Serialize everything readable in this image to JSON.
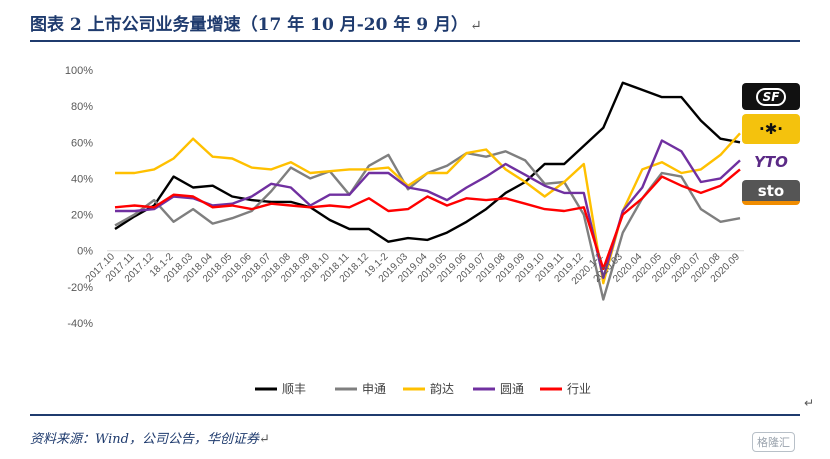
{
  "header": {
    "title": "图表 2  上市公司业务量增速（17 年 10 月-20 年 9 月）",
    "return_glyph": "↵"
  },
  "footer": {
    "source": "资料来源：Wind，公司公告，华创证券",
    "return_glyph": "↵",
    "side_glyph": "↵"
  },
  "logos": {
    "sf": "SF",
    "zto": "·✱·",
    "yto": "YTO",
    "sto": "sto"
  },
  "watermark": "格隆汇",
  "chart_data": {
    "type": "line",
    "categories": [
      "2017.10",
      "2017.11",
      "2017.12",
      "18.1-2",
      "2018.03",
      "2018.04",
      "2018.05",
      "2018.06",
      "2018.07",
      "2018.08",
      "2018.09",
      "2018.10",
      "2018.11",
      "2018.12",
      "19.1-2",
      "2019.03",
      "2019.04",
      "2019.05",
      "2019.06",
      "2019.07",
      "2019.08",
      "2019.09",
      "2019.10",
      "2019.11",
      "2019.12",
      "2020.1-2",
      "2020.03",
      "2020.04",
      "2020.05",
      "2020.06",
      "2020.07",
      "2020.08",
      "2020.09"
    ],
    "ylim": [
      -40,
      100
    ],
    "yticks": [
      -40,
      -20,
      0,
      20,
      40,
      60,
      80,
      100
    ],
    "ytick_labels": [
      "-40%",
      "-20%",
      "0%",
      "20%",
      "40%",
      "60%",
      "80%",
      "100%"
    ],
    "legend_position": "bottom",
    "grid": false,
    "series": [
      {
        "name": "顺丰",
        "color": "#000000",
        "values": [
          12,
          19,
          25,
          41,
          35,
          36,
          30,
          28,
          27,
          27,
          24,
          17,
          12,
          12,
          5,
          7,
          6,
          10,
          16,
          23,
          32,
          38,
          48,
          48,
          58,
          68,
          93,
          89,
          85,
          85,
          72,
          62,
          60
        ]
      },
      {
        "name": "申通",
        "color": "#7f7f7f",
        "values": [
          14,
          20,
          28,
          16,
          23,
          15,
          18,
          22,
          33,
          46,
          40,
          44,
          31,
          47,
          53,
          34,
          43,
          47,
          54,
          52,
          55,
          50,
          37,
          38,
          20,
          -27,
          10,
          29,
          43,
          41,
          23,
          16,
          18
        ]
      },
      {
        "name": "韵达",
        "color": "#ffc000",
        "values": [
          43,
          43,
          45,
          51,
          62,
          52,
          51,
          46,
          45,
          49,
          43,
          44,
          45,
          45,
          46,
          36,
          43,
          43,
          54,
          56,
          45,
          38,
          30,
          38,
          48,
          -18,
          22,
          45,
          49,
          43,
          45,
          53,
          65
        ]
      },
      {
        "name": "圆通",
        "color": "#7030a0",
        "values": [
          22,
          22,
          23,
          30,
          29,
          25,
          26,
          30,
          37,
          35,
          25,
          31,
          31,
          43,
          43,
          35,
          33,
          28,
          35,
          41,
          48,
          42,
          36,
          32,
          32,
          -15,
          22,
          35,
          61,
          55,
          38,
          40,
          50
        ]
      },
      {
        "name": "行业",
        "color": "#ff0000",
        "values": [
          24,
          25,
          24,
          31,
          30,
          24,
          25,
          23,
          26,
          25,
          24,
          25,
          24,
          29,
          22,
          23,
          30,
          25,
          29,
          28,
          29,
          26,
          23,
          22,
          24,
          -10,
          20,
          29,
          41,
          36,
          32,
          36,
          45
        ]
      }
    ]
  }
}
